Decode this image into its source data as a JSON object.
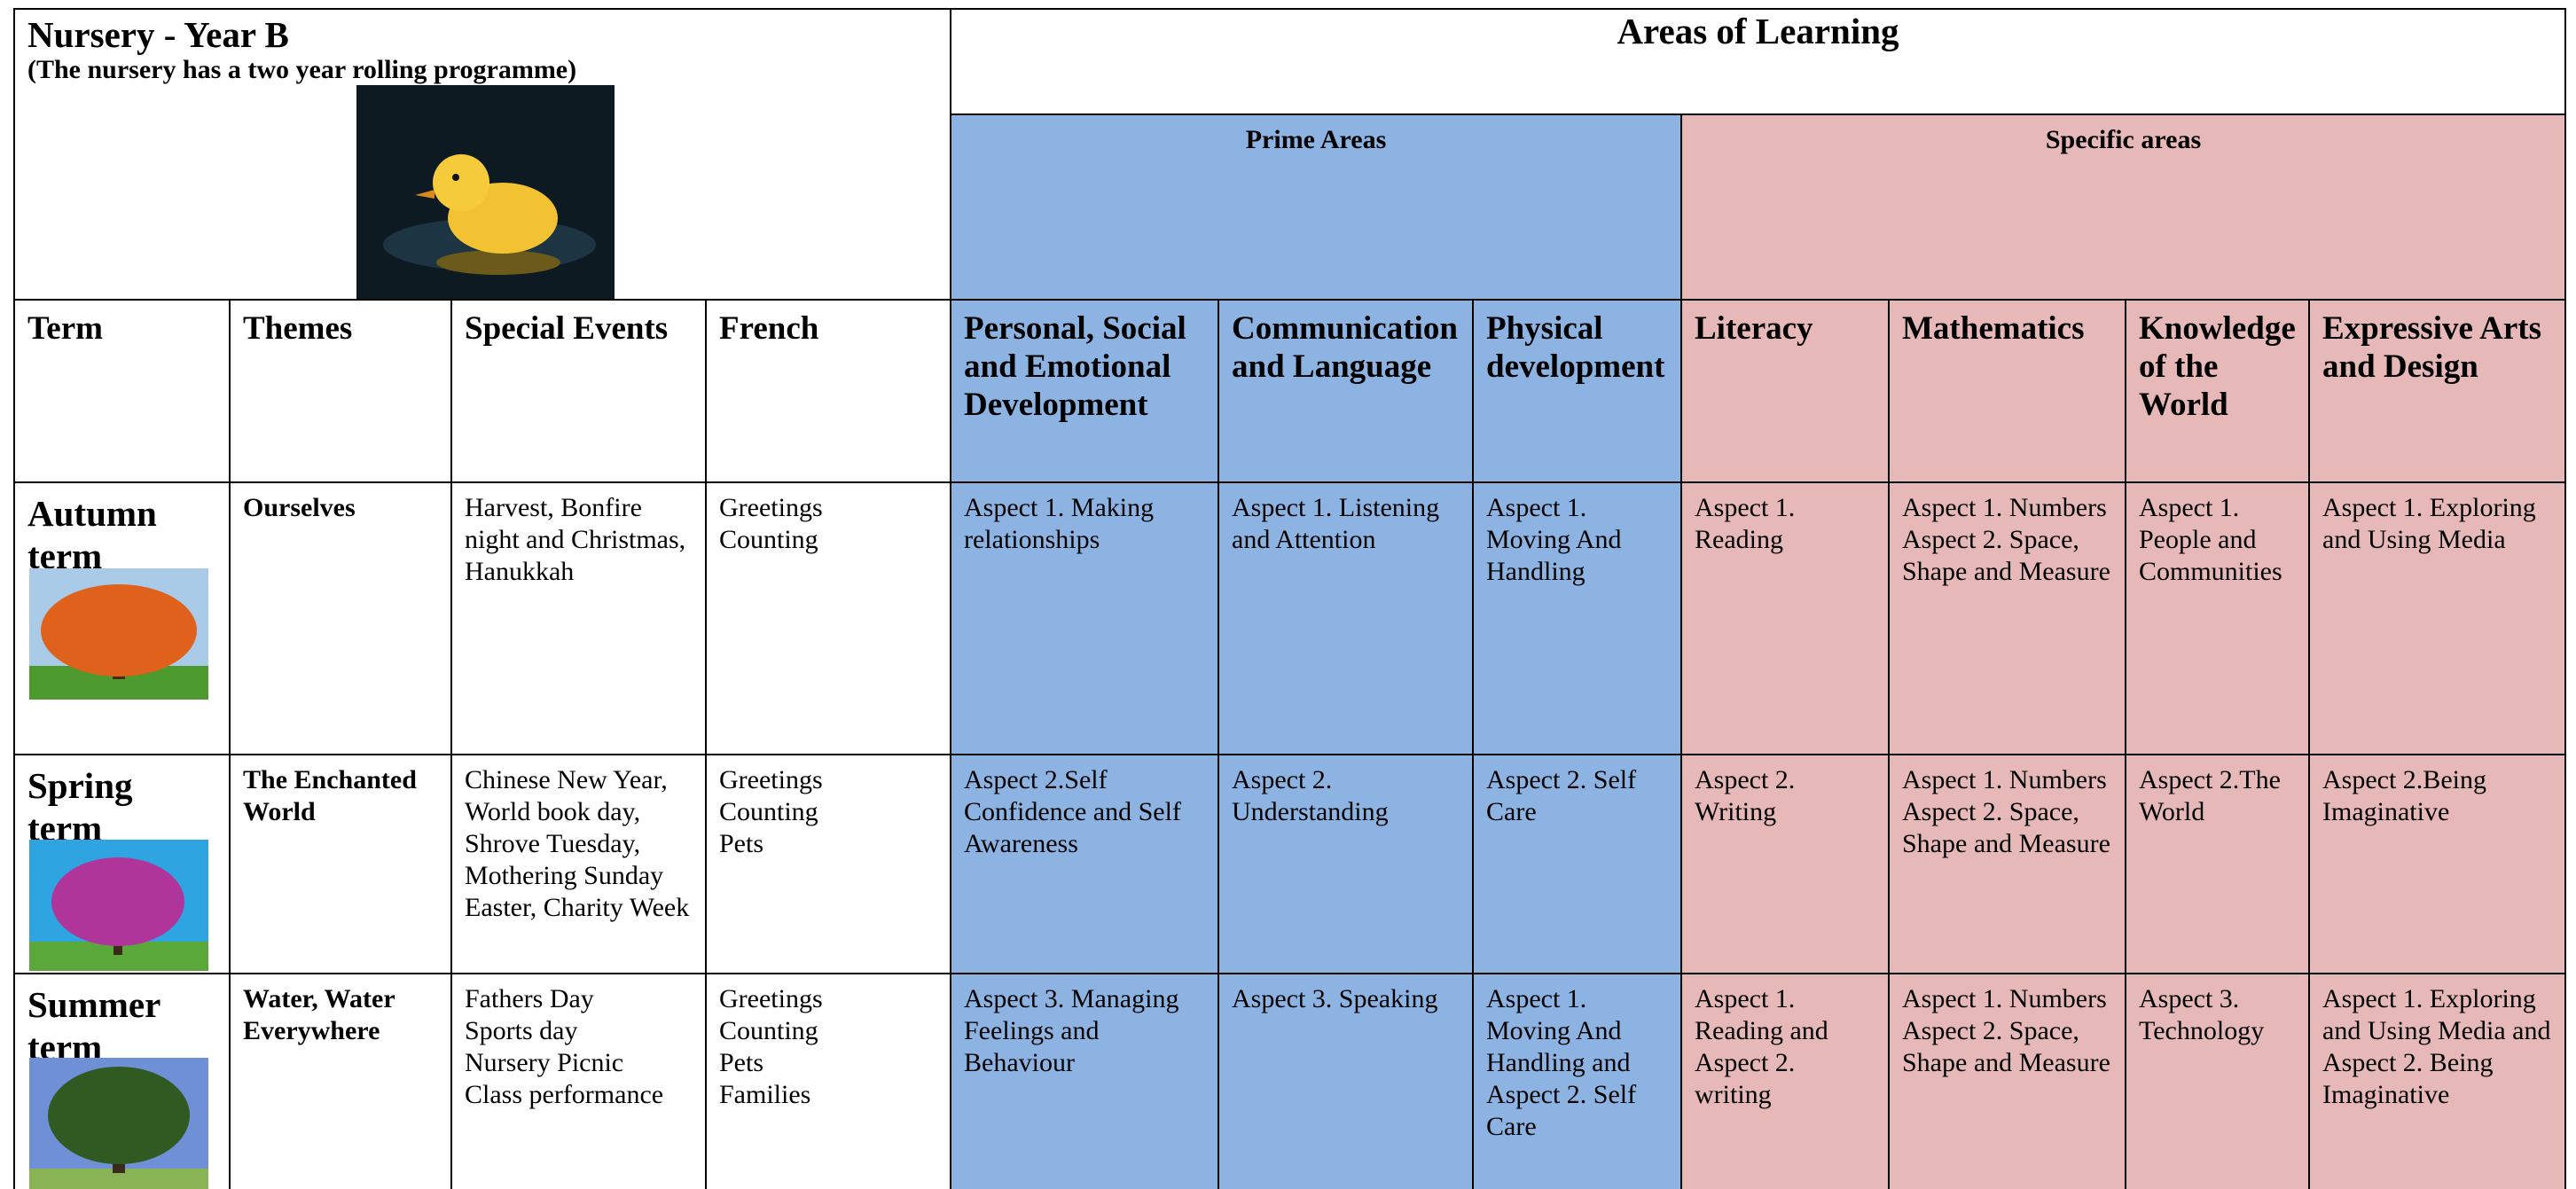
{
  "header": {
    "title": "Nursery -  Year B",
    "subtitle": "(The nursery has a two year rolling programme)",
    "areas_title": "Areas of Learning",
    "prime_label": "Prime Areas",
    "specific_label": "Specific areas"
  },
  "columns": [
    "Term",
    "Themes",
    "Special Events",
    "French",
    "Personal, Social and Emotional Development",
    "Communication and Language",
    "Physical development",
    "Literacy",
    "Mathematics",
    "Knowledge of the World",
    "Expressive Arts and Design"
  ],
  "rows": [
    {
      "term": "Autumn term",
      "theme": "Ourselves",
      "events": [
        "Harvest, Bonfire night and Christmas, Hanukkah"
      ],
      "french": [
        "Greetings",
        "Counting"
      ],
      "cells": [
        [
          "Aspect 1. Making relationships"
        ],
        [
          "Aspect 1. Listening and Attention"
        ],
        [
          "Aspect 1. Moving And Handling"
        ],
        [
          "Aspect 1. Reading"
        ],
        [
          "Aspect 1. Numbers",
          "Aspect 2. Space, Shape and Measure"
        ],
        [
          "Aspect 1. People and Communities"
        ],
        [
          "Aspect 1. Exploring and Using Media"
        ]
      ]
    },
    {
      "term": "Spring term",
      "theme": "The Enchanted World",
      "events": [
        "Chinese New Year, World book day, Shrove Tuesday, Mothering Sunday Easter, Charity Week"
      ],
      "french": [
        "Greetings",
        "Counting",
        "Pets"
      ],
      "cells": [
        [
          "Aspect 2.Self Confidence and Self Awareness"
        ],
        [
          "Aspect 2. Understanding"
        ],
        [
          "Aspect 2. Self Care"
        ],
        [
          "Aspect 2. Writing"
        ],
        [
          "Aspect 1. Numbers",
          "Aspect 2. Space, Shape and Measure"
        ],
        [
          "Aspect 2.The World"
        ],
        [
          "Aspect 2.Being Imaginative"
        ]
      ]
    },
    {
      "term": "Summer term",
      "theme": "Water, Water Everywhere",
      "events": [
        "Fathers Day",
        "Sports day",
        "Nursery Picnic",
        "Class performance"
      ],
      "french": [
        "Greetings",
        "Counting",
        "Pets",
        "Families"
      ],
      "cells": [
        [
          "Aspect 3. Managing Feelings and Behaviour"
        ],
        [
          "Aspect 3. Speaking"
        ],
        [
          "Aspect 1. Moving And Handling and Aspect 2. Self Care"
        ],
        [
          "Aspect 1. Reading and Aspect 2. writing"
        ],
        [
          "Aspect 1. Numbers",
          "Aspect 2. Space, Shape and Measure"
        ],
        [
          "Aspect 3. Technology"
        ],
        [
          "Aspect 1. Exploring and Using Media and Aspect 2. Being Imaginative"
        ]
      ]
    }
  ]
}
